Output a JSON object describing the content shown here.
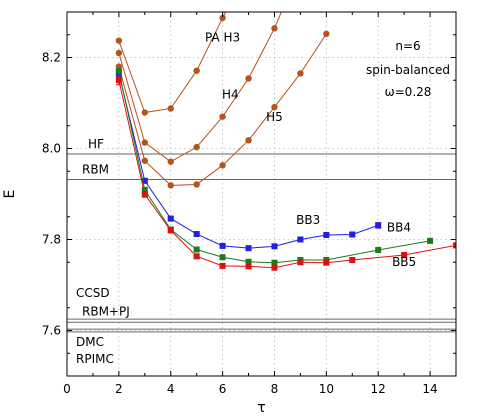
{
  "chart_data": {
    "type": "line",
    "xlabel": "τ",
    "ylabel": "E",
    "xlim": [
      0,
      15
    ],
    "ylim": [
      7.5,
      8.3
    ],
    "x_ticks": [
      "0",
      "2",
      "4",
      "6",
      "8",
      "10",
      "12",
      "14"
    ],
    "y_ticks": [
      "7.6",
      "7.8",
      "8.0",
      "8.2"
    ],
    "grid": true,
    "annotation_lines": [
      "n=6",
      "spin-balanced",
      "ω=0.28"
    ],
    "reference_lines": [
      {
        "label": "HF",
        "y": 7.988
      },
      {
        "label": "RBM",
        "y": 7.932
      },
      {
        "label": "CCSD",
        "y": 7.625
      },
      {
        "label": "RBM+PJ",
        "y": 7.618
      },
      {
        "label": "DMC",
        "y": 7.603
      },
      {
        "label": "RPIMC",
        "y": 7.597
      }
    ],
    "reference_colors": "#666666",
    "series": [
      {
        "name": "PA H3",
        "color": "#b5531c",
        "marker": "circle",
        "x": [
          2,
          3,
          4,
          5,
          6,
          7
        ],
        "y": [
          8.237,
          8.079,
          8.088,
          8.171,
          8.287,
          8.4
        ]
      },
      {
        "name": "H4",
        "color": "#b5531c",
        "marker": "circle",
        "x": [
          2,
          3,
          4,
          5,
          6,
          7,
          8,
          9
        ],
        "y": [
          8.21,
          8.013,
          7.971,
          8.003,
          8.07,
          8.154,
          8.264,
          8.4
        ]
      },
      {
        "name": "H5",
        "color": "#b5531c",
        "marker": "circle",
        "x": [
          2,
          3,
          4,
          5,
          6,
          7,
          8,
          9,
          10
        ],
        "y": [
          8.18,
          7.973,
          7.919,
          7.921,
          7.963,
          8.018,
          8.091,
          8.165,
          8.252
        ]
      },
      {
        "name": "BB3",
        "color": "#1f1fe6",
        "marker": "square",
        "x": [
          2,
          3,
          4,
          5,
          6,
          7,
          8,
          9,
          10,
          11,
          12
        ],
        "y": [
          8.165,
          7.929,
          7.846,
          7.812,
          7.786,
          7.781,
          7.785,
          7.8,
          7.81,
          7.811,
          7.831
        ],
        "err": [
          0.008,
          0.005,
          0.003,
          0.003,
          0.003,
          0.003,
          0.003,
          0.004,
          0.004,
          0.005,
          0.006
        ]
      },
      {
        "name": "BB4",
        "color": "#1d7a1d",
        "marker": "square",
        "x": [
          2,
          3,
          4,
          5,
          6,
          7,
          8,
          9,
          10,
          12,
          14
        ],
        "y": [
          8.17,
          7.909,
          7.822,
          7.778,
          7.761,
          7.751,
          7.749,
          7.755,
          7.755,
          7.777,
          7.797
        ]
      },
      {
        "name": "BB5",
        "color": "#e01010",
        "marker": "square",
        "x": [
          2,
          3,
          4,
          5,
          6,
          7,
          8,
          9,
          10,
          11,
          13,
          15
        ],
        "y": [
          8.15,
          7.899,
          7.82,
          7.763,
          7.742,
          7.741,
          7.738,
          7.75,
          7.749,
          7.755,
          7.766,
          7.787
        ],
        "err": [
          0.01,
          0.006,
          0.005,
          0.005,
          0.005,
          0.004,
          0.004,
          0.004,
          0.004,
          0.004,
          0.004,
          0.004
        ]
      }
    ],
    "series_label_positions": {
      "PA H3": [
        6.0,
        8.235
      ],
      "H4": [
        6.3,
        8.11
      ],
      "H5": [
        8.0,
        8.06
      ],
      "BB3": [
        9.3,
        7.834
      ],
      "BB4": [
        12.8,
        7.818
      ],
      "BB5": [
        13.0,
        7.742
      ]
    }
  }
}
